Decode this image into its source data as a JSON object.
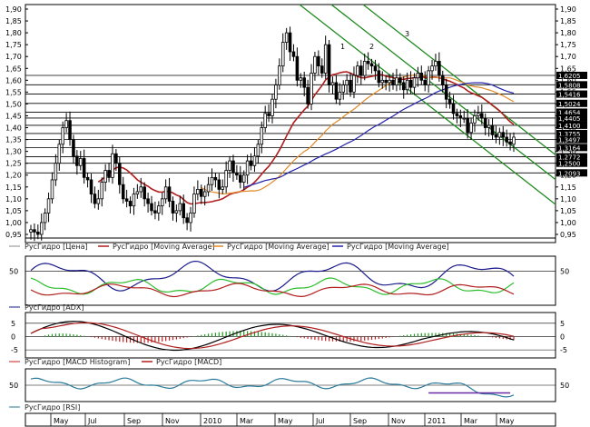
{
  "chart_data": {
    "type": "candlestick",
    "x_ticks": [
      "May",
      "Jul",
      "Sep",
      "Nov",
      "2010",
      "Mar",
      "May",
      "Jul",
      "Sep",
      "Nov",
      "2011",
      "Mar",
      "May"
    ],
    "price_axis": {
      "ylim": [
        0.95,
        1.9
      ],
      "ticks": [
        "1,90",
        "1,85",
        "1,80",
        "1,75",
        "1,70",
        "1,65",
        "1,60",
        "1,55",
        "1,50",
        "1,45",
        "1,40",
        "1,35",
        "1,30",
        "1,25",
        "1,20",
        "1,15",
        "1,10",
        "1,05",
        "1,00",
        "0,95"
      ],
      "tick_values": [
        1.9,
        1.85,
        1.8,
        1.75,
        1.7,
        1.65,
        1.6,
        1.55,
        1.5,
        1.45,
        1.4,
        1.35,
        1.3,
        1.25,
        1.2,
        1.15,
        1.1,
        1.05,
        1.0,
        0.95
      ]
    },
    "level_labels": [
      "1,6205",
      "1,5808",
      "1,5416",
      "1,5024",
      "1,4654",
      "1,4405",
      "1,4100",
      "1,3755",
      "1,3497",
      "1,3164",
      "1,2772",
      "1,2500",
      "1,2093"
    ],
    "level_values": [
      1.6205,
      1.5808,
      1.5416,
      1.5024,
      1.4654,
      1.4405,
      1.41,
      1.3755,
      1.3497,
      1.3164,
      1.2772,
      1.25,
      1.2093
    ],
    "channel_labels": [
      "1",
      "2",
      "3"
    ],
    "price_series": {
      "name": "РусГидро [Цена]",
      "close": [
        0.97,
        0.96,
        0.95,
        1.0,
        1.04,
        1.1,
        1.18,
        1.25,
        1.33,
        1.4,
        1.43,
        1.35,
        1.28,
        1.24,
        1.27,
        1.19,
        1.18,
        1.12,
        1.08,
        1.1,
        1.17,
        1.22,
        1.19,
        1.29,
        1.25,
        1.16,
        1.1,
        1.09,
        1.07,
        1.12,
        1.13,
        1.15,
        1.1,
        1.08,
        1.05,
        1.04,
        1.07,
        1.1,
        1.15,
        1.09,
        1.04,
        1.05,
        1.08,
        1.02,
        1.0,
        1.04,
        1.12,
        1.14,
        1.11,
        1.13,
        1.16,
        1.19,
        1.18,
        1.14,
        1.15,
        1.22,
        1.26,
        1.21,
        1.2,
        1.17,
        1.2,
        1.26,
        1.24,
        1.28,
        1.33,
        1.4,
        1.46,
        1.45,
        1.52,
        1.58,
        1.66,
        1.76,
        1.8,
        1.72,
        1.7,
        1.6,
        1.61,
        1.57,
        1.5,
        1.63,
        1.7,
        1.66,
        1.63,
        1.75,
        1.58,
        1.59,
        1.52,
        1.55,
        1.58,
        1.6,
        1.55,
        1.62,
        1.66,
        1.62,
        1.68,
        1.67,
        1.66,
        1.64,
        1.59,
        1.6,
        1.59,
        1.6,
        1.58,
        1.61,
        1.59,
        1.56,
        1.6,
        1.57,
        1.61,
        1.63,
        1.6,
        1.58,
        1.64,
        1.66,
        1.68,
        1.62,
        1.58,
        1.52,
        1.5,
        1.46,
        1.45,
        1.44,
        1.44,
        1.38,
        1.42,
        1.45,
        1.46,
        1.44,
        1.4,
        1.41,
        1.37,
        1.36,
        1.38,
        1.36,
        1.34,
        1.33,
        1.36
      ]
    },
    "moving_averages": [
      {
        "name": "РусГидро [Moving Average]",
        "color": "#b01e1e",
        "window": 30
      },
      {
        "name": "РусГидро [Moving Average]",
        "color": "#e08a2a",
        "window": 60
      },
      {
        "name": "РусГидро [Moving Average]",
        "color": "#2222aa",
        "window": 120
      }
    ],
    "adx_panel": {
      "name": "РусГидро [ADX]",
      "ticks": [
        "50"
      ],
      "tick_values": [
        50
      ],
      "ylim": [
        0,
        70
      ]
    },
    "macd_panel": {
      "names": [
        "РусГидро [MACD Histogram]",
        "РусГидро [MACD]"
      ],
      "ticks": [
        "5",
        "0",
        "-5"
      ],
      "tick_values": [
        5,
        0,
        -5
      ],
      "ylim": [
        -7,
        8
      ]
    },
    "rsi_panel": {
      "name": "РусГидро [RSI]",
      "ticks": [
        "50"
      ],
      "tick_values": [
        50
      ],
      "ylim": [
        20,
        80
      ]
    },
    "colors": {
      "up": "#ffffff",
      "down": "#000000",
      "channel": "#1e8a1e",
      "levels": "#000000",
      "adx": "#1a1a8a",
      "di_plus": "#2dbd2d",
      "di_minus": "#b01e1e",
      "hist_up": "#1e9a1e",
      "hist_down": "#c02020",
      "macd": "#000000",
      "signal": "#b01e1e",
      "rsi": "#2a7a9a",
      "rsi_low": "#6a2aa8"
    }
  }
}
